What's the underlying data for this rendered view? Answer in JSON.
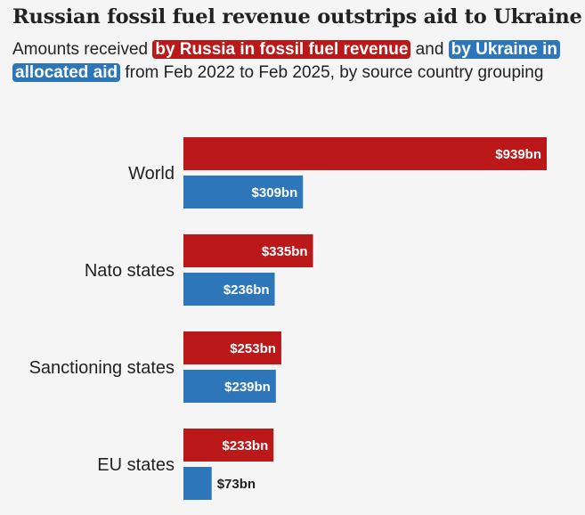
{
  "title": "Russian fossil fuel revenue outstrips aid to Ukraine",
  "subtitle": {
    "part1": "Amounts received ",
    "highlight_russia": "by Russia in fossil fuel revenue",
    "part2": " and ",
    "highlight_ukraine": "by Ukraine in allocated aid",
    "part3": " from Feb 2022 to Feb 2025, by source country grouping"
  },
  "colors": {
    "russia": "#bb1919",
    "ukraine": "#2d76b9",
    "background": "#f5f5f5"
  },
  "chart_data": {
    "type": "bar",
    "orientation": "horizontal",
    "categories": [
      "World",
      "Nato states",
      "Sanctioning states",
      "EU states"
    ],
    "series": [
      {
        "values": [
          939,
          335,
          253,
          233
        ],
        "labels": [
          "$939bn",
          "$335bn",
          "$253bn",
          "$233bn"
        ],
        "color": "#bb1919"
      },
      {
        "values": [
          309,
          236,
          239,
          73
        ],
        "labels": [
          "$309bn",
          "$236bn",
          "$239bn",
          "$73bn"
        ],
        "color": "#2d76b9"
      }
    ],
    "xlim": [
      0,
      939
    ],
    "grid": false,
    "legend": "none"
  }
}
